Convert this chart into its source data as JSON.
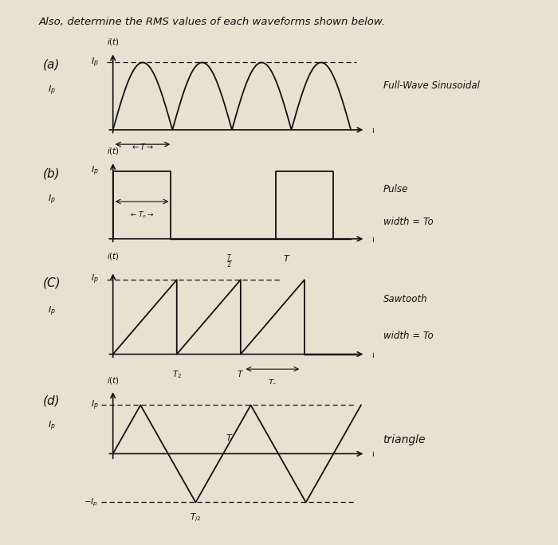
{
  "title": "Also, determine the RMS values of each waveforms shown below.",
  "bg": "#e8e0d0",
  "lc": "#111111",
  "font_color": "#111111",
  "panels": {
    "a": {
      "label": "(a)",
      "right_text": "Full-Wave Sinusoidal"
    },
    "b": {
      "label": "(b)",
      "right_text1": "Pulse",
      "right_text2": "width = To"
    },
    "c": {
      "label": "(C)",
      "right_text1": "Sawtooth",
      "right_text2": "width = To"
    },
    "d": {
      "label": "(d)",
      "right_text": "triangle"
    }
  }
}
